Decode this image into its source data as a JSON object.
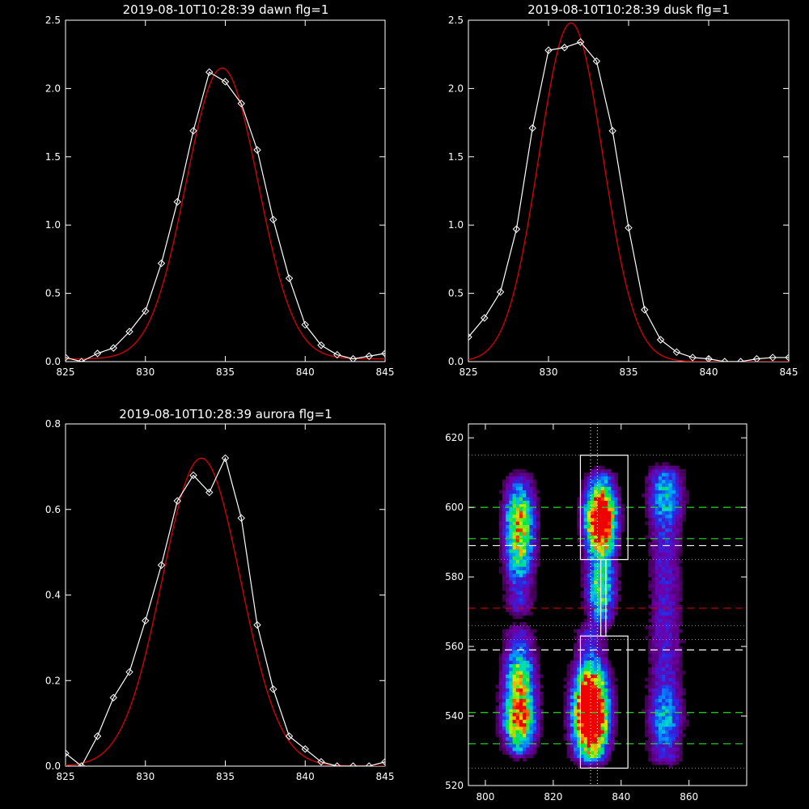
{
  "colors": {
    "background": "#000000",
    "axes": "#ffffff",
    "data_line": "#ffffff",
    "fit_line": "#dd0000",
    "green_dash": "#22dd22",
    "white_dash": "#ffffff",
    "red_dash": "#cc0000",
    "magenta_dot": "#ff44ff"
  },
  "chart_data": [
    {
      "type": "line",
      "title": "2019-08-10T10:28:39 dawn flg=1",
      "xlim": [
        825,
        845
      ],
      "ylim": [
        0,
        2.5
      ],
      "xticks": [
        825,
        830,
        835,
        840,
        845
      ],
      "yticks": [
        0.0,
        0.5,
        1.0,
        1.5,
        2.0,
        2.5
      ],
      "ytick_labels": [
        "0.0",
        "0.5",
        "1.0",
        "1.5",
        "2.0",
        "2.5"
      ],
      "series": [
        {
          "x": [
            825,
            826,
            827,
            828,
            829,
            830,
            831,
            832,
            833,
            834,
            835,
            836,
            837,
            838,
            839,
            840,
            841,
            842,
            843,
            844,
            845
          ],
          "y": [
            0.03,
            0.0,
            0.06,
            0.1,
            0.22,
            0.37,
            0.72,
            1.17,
            1.69,
            2.12,
            2.05,
            1.89,
            1.55,
            1.04,
            0.61,
            0.27,
            0.12,
            0.05,
            0.02,
            0.04,
            0.06
          ],
          "markers": "diamond",
          "color": "#ffffff"
        },
        {
          "fit": "gaussian",
          "amplitude": 2.13,
          "center": 834.8,
          "sigma": 2.25,
          "offset": 0.02,
          "color": "#dd0000"
        }
      ]
    },
    {
      "type": "line",
      "title": "2019-08-10T10:28:39 dusk flg=1",
      "xlim": [
        825,
        845
      ],
      "ylim": [
        0,
        2.5
      ],
      "xticks": [
        825,
        830,
        835,
        840,
        845
      ],
      "yticks": [
        0.0,
        0.5,
        1.0,
        1.5,
        2.0,
        2.5
      ],
      "ytick_labels": [
        "0.0",
        "0.5",
        "1.0",
        "1.5",
        "2.0",
        "2.5"
      ],
      "series": [
        {
          "x": [
            825,
            826,
            827,
            828,
            829,
            830,
            831,
            832,
            833,
            834,
            835,
            836,
            837,
            838,
            839,
            840,
            841,
            842,
            843,
            844,
            845
          ],
          "y": [
            0.18,
            0.32,
            0.51,
            0.97,
            1.71,
            2.28,
            2.3,
            2.34,
            2.2,
            1.69,
            0.98,
            0.38,
            0.16,
            0.07,
            0.03,
            0.02,
            0.0,
            0.0,
            0.02,
            0.03,
            0.03
          ],
          "markers": "diamond",
          "color": "#ffffff"
        },
        {
          "fit": "gaussian",
          "amplitude": 2.48,
          "center": 831.4,
          "sigma": 2.0,
          "offset": 0.0,
          "color": "#dd0000"
        }
      ]
    },
    {
      "type": "line",
      "title": "2019-08-10T10:28:39 aurora flg=1",
      "xlim": [
        825,
        845
      ],
      "ylim": [
        0,
        0.8
      ],
      "xticks": [
        825,
        830,
        835,
        840,
        845
      ],
      "yticks": [
        0.0,
        0.2,
        0.4,
        0.6,
        0.8
      ],
      "ytick_labels": [
        "0.0",
        "0.2",
        "0.4",
        "0.6",
        "0.8"
      ],
      "series": [
        {
          "x": [
            825,
            826,
            827,
            828,
            829,
            830,
            831,
            832,
            833,
            834,
            835,
            836,
            837,
            838,
            839,
            840,
            841,
            842,
            843,
            844,
            845
          ],
          "y": [
            0.03,
            0.0,
            0.07,
            0.16,
            0.22,
            0.34,
            0.47,
            0.62,
            0.68,
            0.64,
            0.72,
            0.58,
            0.33,
            0.18,
            0.07,
            0.04,
            0.01,
            0.0,
            0.0,
            0.0,
            0.01
          ],
          "markers": "diamond",
          "color": "#ffffff"
        },
        {
          "fit": "gaussian",
          "amplitude": 0.72,
          "center": 833.5,
          "sigma": 2.45,
          "offset": 0.0,
          "color": "#dd0000"
        }
      ]
    },
    {
      "type": "heatmap",
      "xlim": [
        795,
        877
      ],
      "ylim": [
        520,
        624
      ],
      "xticks": [
        800,
        820,
        840,
        860
      ],
      "yticks": [
        520,
        540,
        560,
        580,
        600,
        620
      ],
      "colormap": "rainbow",
      "bands": [
        {
          "x": 810,
          "width": 3.2,
          "y_min": 528,
          "y_max": 566,
          "peaks": [
            {
              "y": 539,
              "strength": 0.75
            },
            {
              "y": 551,
              "strength": 0.45
            }
          ]
        },
        {
          "x": 810,
          "width": 3.0,
          "y_min": 569,
          "y_max": 610,
          "peaks": [
            {
              "y": 597,
              "strength": 0.55
            },
            {
              "y": 587,
              "strength": 0.35
            }
          ]
        },
        {
          "x": 831,
          "width": 3.4,
          "y_min": 526,
          "y_max": 566,
          "peaks": [
            {
              "y": 540,
              "strength": 1.0
            },
            {
              "y": 548,
              "strength": 0.65
            },
            {
              "y": 533,
              "strength": 0.45
            }
          ]
        },
        {
          "x": 834,
          "width": 3.0,
          "y_min": 566,
          "y_max": 611,
          "peaks": [
            {
              "y": 599,
              "strength": 0.9
            },
            {
              "y": 592,
              "strength": 0.55
            },
            {
              "y": 577,
              "strength": 0.4
            }
          ]
        },
        {
          "x": 853,
          "width": 3.5,
          "y_min": 526,
          "y_max": 612,
          "peaks": [
            {
              "y": 540,
              "strength": 0.22
            },
            {
              "y": 603,
              "strength": 0.25
            }
          ]
        }
      ],
      "rectangles": [
        {
          "x0": 828,
          "x1": 842,
          "y0": 525,
          "y1": 563
        },
        {
          "x0": 828,
          "x1": 842,
          "y0": 585,
          "y1": 615
        },
        {
          "x0": 834,
          "x1": 835.5,
          "y0": 563,
          "y1": 585
        }
      ],
      "hlines": [
        {
          "y": 532,
          "style": "dash",
          "color": "green"
        },
        {
          "y": 541,
          "style": "dash",
          "color": "green"
        },
        {
          "y": 559,
          "style": "dash",
          "color": "white"
        },
        {
          "y": 571,
          "style": "dash",
          "color": "red"
        },
        {
          "y": 589,
          "style": "dash",
          "color": "white"
        },
        {
          "y": 591,
          "style": "dash",
          "color": "green"
        },
        {
          "y": 600,
          "style": "dash",
          "color": "green"
        },
        {
          "y": 525,
          "style": "dot",
          "color": "magenta"
        },
        {
          "y": 562,
          "style": "dot",
          "color": "magenta"
        },
        {
          "y": 566,
          "style": "dot",
          "color": "magenta"
        },
        {
          "y": 585,
          "style": "dot",
          "color": "magenta"
        },
        {
          "y": 615,
          "style": "dot",
          "color": "magenta"
        }
      ],
      "vlines": [
        {
          "x": 831,
          "style": "dot",
          "color": "white"
        },
        {
          "x": 833,
          "style": "dot",
          "color": "white"
        }
      ]
    }
  ]
}
